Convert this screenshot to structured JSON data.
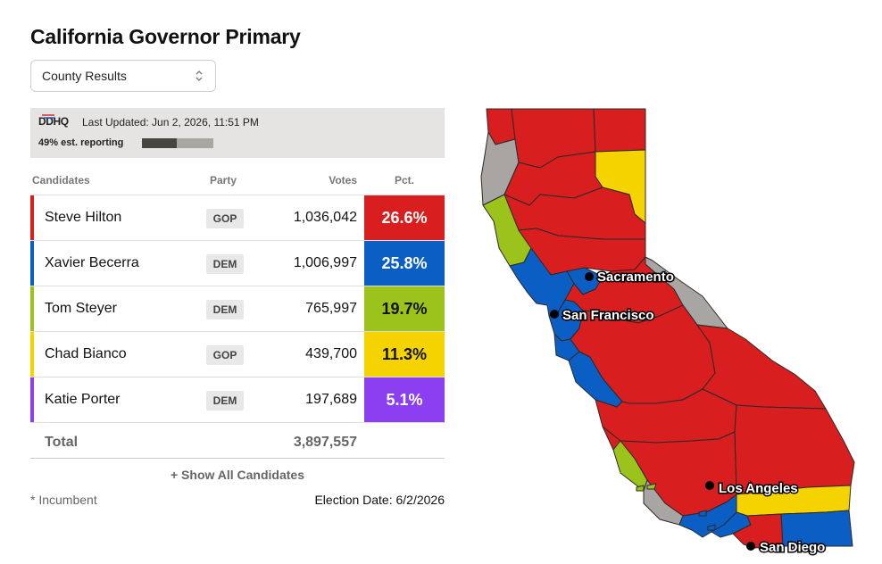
{
  "title": "California Governor Primary",
  "view_select": {
    "value": "County Results"
  },
  "status": {
    "logo": "DDHQ",
    "last_updated": "Last Updated: Jun 2, 2026, 11:51 PM",
    "reporting_label": "49% est. reporting",
    "reporting_fraction": 0.49
  },
  "table": {
    "headers": {
      "candidates": "Candidates",
      "party": "Party",
      "votes": "Votes",
      "pct": "Pct."
    },
    "rows": [
      {
        "name": "Steve Hilton",
        "party": "GOP",
        "votes": "1,036,042",
        "pct": "26.6%",
        "color": "#d81e1e",
        "pct_text_color": "#ffffff"
      },
      {
        "name": "Xavier Becerra",
        "party": "DEM",
        "votes": "1,006,997",
        "pct": "25.8%",
        "color": "#0b5ec4",
        "pct_text_color": "#ffffff"
      },
      {
        "name": "Tom Steyer",
        "party": "DEM",
        "votes": "765,997",
        "pct": "19.7%",
        "color": "#9bc31b",
        "pct_text_color": "#111111"
      },
      {
        "name": "Chad Bianco",
        "party": "GOP",
        "votes": "439,700",
        "pct": "11.3%",
        "color": "#f5d300",
        "pct_text_color": "#111111"
      },
      {
        "name": "Katie Porter",
        "party": "DEM",
        "votes": "197,689",
        "pct": "5.1%",
        "color": "#8b3ff0",
        "pct_text_color": "#ffffff"
      }
    ],
    "total_label": "Total",
    "total_votes": "3,897,557"
  },
  "show_all_label": "+ Show All Candidates",
  "incumbent_note": "* Incumbent",
  "election_date": "Election Date: 6/2/2026",
  "map": {
    "cities": [
      {
        "name": "Sacramento"
      },
      {
        "name": "San Francisco"
      },
      {
        "name": "Los Angeles"
      },
      {
        "name": "San Diego"
      }
    ],
    "colors": {
      "hilton": "#d81e1e",
      "becerra": "#0b5ec4",
      "steyer": "#9bc31b",
      "bianco": "#f5d300",
      "no_data": "#a8a5a2"
    }
  }
}
